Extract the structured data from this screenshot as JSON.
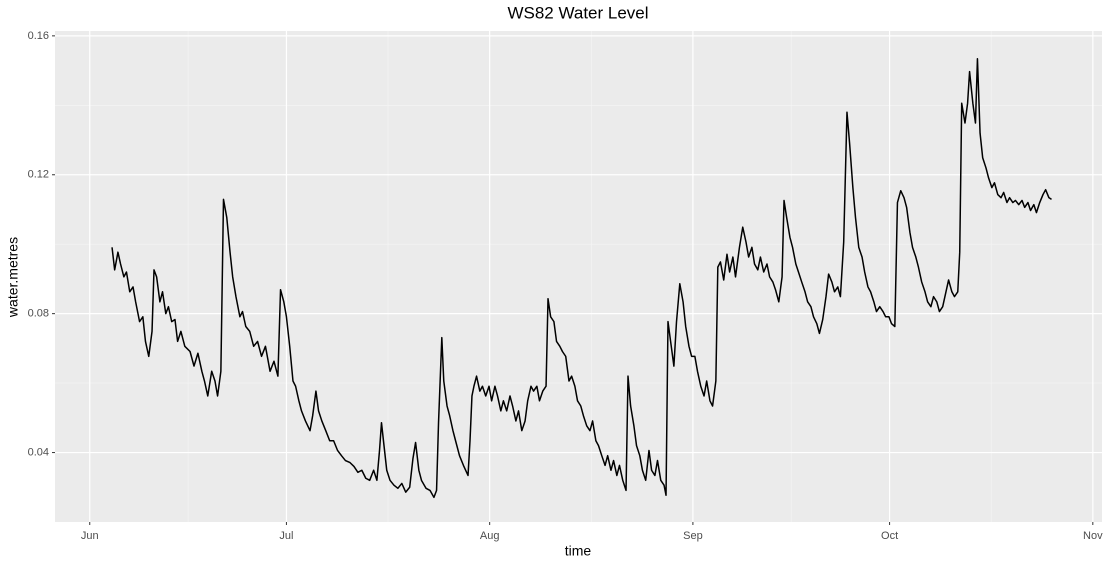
{
  "chart_data": {
    "type": "line",
    "title": "WS82 Water Level",
    "x_label": "time",
    "y_label": "water.metres",
    "color": "#000000",
    "grid": true,
    "xlim": [
      -5.3,
      154.4
    ],
    "ylim": [
      0.02,
      0.1614
    ],
    "xticks": [
      {
        "value": 0,
        "label": "Jun"
      },
      {
        "value": 30,
        "label": "Jul"
      },
      {
        "value": 61,
        "label": "Aug"
      },
      {
        "value": 92,
        "label": "Sep"
      },
      {
        "value": 122,
        "label": "Oct"
      },
      {
        "value": 153,
        "label": "Nov"
      }
    ],
    "yticks": [
      0.04,
      0.08,
      0.12,
      0.16
    ],
    "x": [
      3.4,
      3.8,
      4.3,
      4.7,
      5.2,
      5.6,
      6.1,
      6.6,
      7.0,
      7.6,
      8.1,
      8.5,
      9.0,
      9.5,
      9.8,
      10.2,
      10.7,
      11.1,
      11.6,
      12.0,
      12.5,
      13.0,
      13.4,
      13.9,
      14.5,
      15.3,
      15.9,
      16.5,
      17.1,
      17.5,
      18.0,
      18.6,
      19.1,
      19.5,
      20.0,
      20.4,
      20.9,
      21.4,
      21.8,
      22.3,
      22.9,
      23.3,
      23.8,
      24.4,
      25.0,
      25.6,
      26.2,
      26.8,
      27.5,
      28.1,
      28.7,
      29.1,
      29.6,
      30.0,
      30.5,
      31.0,
      31.4,
      31.9,
      32.3,
      32.9,
      33.6,
      34.0,
      34.5,
      34.9,
      35.4,
      36.0,
      36.6,
      37.2,
      37.8,
      38.4,
      39.0,
      39.7,
      40.3,
      40.9,
      41.5,
      42.1,
      42.7,
      43.3,
      43.8,
      44.2,
      44.5,
      44.8,
      45.3,
      45.8,
      46.4,
      47.0,
      47.6,
      48.2,
      48.8,
      49.3,
      49.7,
      50.2,
      50.6,
      51.3,
      51.9,
      52.5,
      52.9,
      53.2,
      53.7,
      54.0,
      54.5,
      54.9,
      55.4,
      55.8,
      56.4,
      57.0,
      57.7,
      58.0,
      58.3,
      58.6,
      59.0,
      59.5,
      59.9,
      60.4,
      60.9,
      61.3,
      61.8,
      62.2,
      62.7,
      63.1,
      63.6,
      64.1,
      64.5,
      65.0,
      65.4,
      65.9,
      66.4,
      66.8,
      67.3,
      67.7,
      68.2,
      68.6,
      69.1,
      69.6,
      69.9,
      70.3,
      70.8,
      71.2,
      71.7,
      72.1,
      72.6,
      73.1,
      73.5,
      74.0,
      74.4,
      74.9,
      75.3,
      75.8,
      76.3,
      76.7,
      77.2,
      77.6,
      78.1,
      78.6,
      79.0,
      79.5,
      79.9,
      80.4,
      80.8,
      81.3,
      81.8,
      82.1,
      82.5,
      83.0,
      83.4,
      83.9,
      84.3,
      84.8,
      85.3,
      85.7,
      86.2,
      86.6,
      87.1,
      87.6,
      87.9,
      88.2,
      88.6,
      89.1,
      89.5,
      90.0,
      90.5,
      90.9,
      91.4,
      91.8,
      92.3,
      92.7,
      93.2,
      93.7,
      94.1,
      94.6,
      95.0,
      95.5,
      95.8,
      96.2,
      96.7,
      97.2,
      97.6,
      98.1,
      98.5,
      99.1,
      99.6,
      100.1,
      100.5,
      101.0,
      101.4,
      101.9,
      102.3,
      102.8,
      103.3,
      103.7,
      104.2,
      104.6,
      105.1,
      105.6,
      105.9,
      106.3,
      106.8,
      107.2,
      107.7,
      108.1,
      108.6,
      109.1,
      109.5,
      110.0,
      110.4,
      110.9,
      111.3,
      111.8,
      112.3,
      112.7,
      113.2,
      113.6,
      114.1,
      114.5,
      115.0,
      115.5,
      115.9,
      116.4,
      116.8,
      117.3,
      117.8,
      118.2,
      118.7,
      119.1,
      119.6,
      120.0,
      120.5,
      121.0,
      121.4,
      121.9,
      122.3,
      122.8,
      123.2,
      123.7,
      124.2,
      124.6,
      125.1,
      125.5,
      126.0,
      126.4,
      126.9,
      127.4,
      127.8,
      128.3,
      128.7,
      129.2,
      129.6,
      130.1,
      130.6,
      131.0,
      131.5,
      131.9,
      132.4,
      132.7,
      133.0,
      133.5,
      133.9,
      134.2,
      134.7,
      135.1,
      135.4,
      135.8,
      136.2,
      136.7,
      137.1,
      137.6,
      138.0,
      138.5,
      139.0,
      139.4,
      139.9,
      140.3,
      140.8,
      141.2,
      141.7,
      142.2,
      142.6,
      143.1,
      143.5,
      144.0,
      144.4,
      144.9,
      145.4,
      145.8,
      146.3,
      146.7
    ],
    "values": [
      0.0991,
      0.0926,
      0.0977,
      0.0943,
      0.0906,
      0.092,
      0.0863,
      0.0877,
      0.0834,
      0.0777,
      0.0791,
      0.072,
      0.0677,
      0.0749,
      0.0926,
      0.0906,
      0.0834,
      0.0863,
      0.08,
      0.082,
      0.0777,
      0.0783,
      0.072,
      0.0749,
      0.0706,
      0.0691,
      0.0649,
      0.0686,
      0.0634,
      0.0606,
      0.0563,
      0.0634,
      0.0606,
      0.0563,
      0.0634,
      0.1129,
      0.1077,
      0.0977,
      0.0906,
      0.0849,
      0.0791,
      0.0806,
      0.0763,
      0.0749,
      0.0706,
      0.072,
      0.0677,
      0.0706,
      0.0634,
      0.0663,
      0.062,
      0.0869,
      0.0834,
      0.0791,
      0.0706,
      0.0606,
      0.0591,
      0.0549,
      0.052,
      0.0491,
      0.0463,
      0.0506,
      0.0577,
      0.052,
      0.0491,
      0.0463,
      0.0434,
      0.0434,
      0.0406,
      0.0391,
      0.0377,
      0.0371,
      0.036,
      0.0343,
      0.0349,
      0.0326,
      0.032,
      0.0349,
      0.032,
      0.0406,
      0.0486,
      0.0434,
      0.0349,
      0.032,
      0.0306,
      0.0297,
      0.0311,
      0.0286,
      0.03,
      0.0383,
      0.0429,
      0.0349,
      0.032,
      0.0297,
      0.0291,
      0.0271,
      0.0291,
      0.0486,
      0.0731,
      0.0606,
      0.0534,
      0.0506,
      0.0463,
      0.0434,
      0.0391,
      0.0363,
      0.0334,
      0.0434,
      0.0563,
      0.0591,
      0.062,
      0.0577,
      0.0591,
      0.0563,
      0.0591,
      0.0549,
      0.0591,
      0.0563,
      0.052,
      0.0549,
      0.052,
      0.0563,
      0.0534,
      0.0491,
      0.052,
      0.0463,
      0.0491,
      0.0549,
      0.0591,
      0.0577,
      0.0591,
      0.0549,
      0.0577,
      0.0591,
      0.0843,
      0.0791,
      0.0777,
      0.072,
      0.0706,
      0.0691,
      0.0677,
      0.0606,
      0.062,
      0.0591,
      0.0549,
      0.0534,
      0.0506,
      0.0477,
      0.0463,
      0.0491,
      0.0434,
      0.042,
      0.0391,
      0.0363,
      0.0391,
      0.0349,
      0.0377,
      0.0334,
      0.0363,
      0.032,
      0.0291,
      0.062,
      0.0534,
      0.0477,
      0.042,
      0.0391,
      0.0349,
      0.032,
      0.0406,
      0.0349,
      0.0334,
      0.0377,
      0.032,
      0.0306,
      0.0277,
      0.0777,
      0.072,
      0.0649,
      0.0777,
      0.0886,
      0.0834,
      0.0763,
      0.0706,
      0.0677,
      0.0677,
      0.0634,
      0.0591,
      0.0563,
      0.0606,
      0.0549,
      0.0534,
      0.0606,
      0.0934,
      0.0949,
      0.0897,
      0.0971,
      0.092,
      0.0963,
      0.0906,
      0.0991,
      0.1049,
      0.1006,
      0.0963,
      0.0991,
      0.0943,
      0.0926,
      0.0963,
      0.092,
      0.0943,
      0.0906,
      0.0891,
      0.0869,
      0.0834,
      0.0906,
      0.1126,
      0.1077,
      0.102,
      0.0991,
      0.0943,
      0.092,
      0.0891,
      0.0863,
      0.0834,
      0.082,
      0.0791,
      0.0771,
      0.0743,
      0.0783,
      0.0849,
      0.0914,
      0.0891,
      0.0863,
      0.0877,
      0.0849,
      0.1006,
      0.138,
      0.1291,
      0.1163,
      0.1077,
      0.0991,
      0.0963,
      0.092,
      0.0877,
      0.0863,
      0.0834,
      0.0806,
      0.082,
      0.0806,
      0.0791,
      0.0791,
      0.0771,
      0.0763,
      0.112,
      0.1154,
      0.1134,
      0.1106,
      0.1034,
      0.0991,
      0.0963,
      0.0934,
      0.0891,
      0.0863,
      0.0834,
      0.082,
      0.0849,
      0.0834,
      0.0806,
      0.082,
      0.0863,
      0.0897,
      0.0863,
      0.0849,
      0.0863,
      0.0977,
      0.1406,
      0.1349,
      0.1406,
      0.1497,
      0.1406,
      0.1349,
      0.1534,
      0.132,
      0.1249,
      0.122,
      0.1191,
      0.1163,
      0.1177,
      0.1143,
      0.1134,
      0.1149,
      0.112,
      0.1134,
      0.112,
      0.1126,
      0.1114,
      0.1126,
      0.1106,
      0.112,
      0.1097,
      0.1114,
      0.1091,
      0.112,
      0.1143,
      0.1157,
      0.1134,
      0.1129
    ]
  }
}
